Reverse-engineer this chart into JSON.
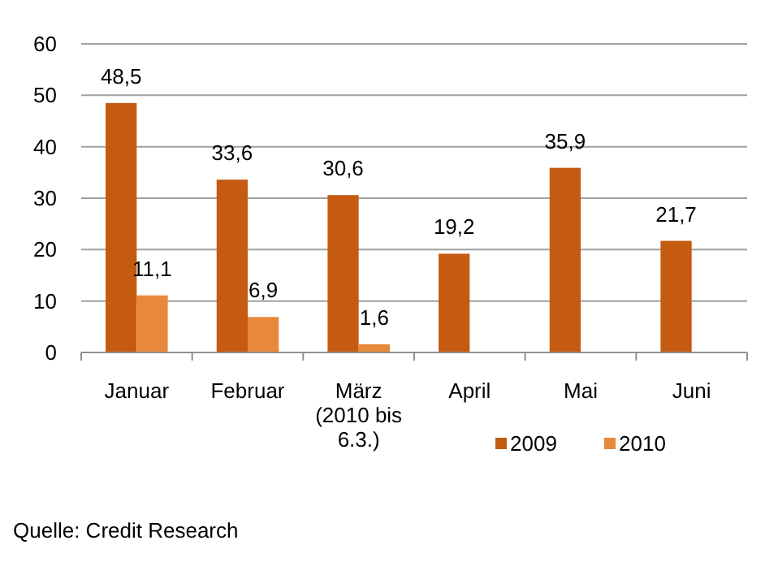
{
  "chart_data": {
    "type": "bar",
    "categories": [
      "Januar",
      "Februar",
      "März (2010 bis 6.3.)",
      "April",
      "Mai",
      "Juni"
    ],
    "series": [
      {
        "name": "2009",
        "color": "#c55a11",
        "values": [
          48.5,
          33.6,
          30.6,
          19.2,
          35.9,
          21.7
        ],
        "value_labels": [
          "48,5",
          "33,6",
          "30,6",
          "19,2",
          "35,9",
          "21,7"
        ]
      },
      {
        "name": "2010",
        "color": "#e8883a",
        "values": [
          11.1,
          6.9,
          1.6,
          null,
          null,
          null
        ],
        "value_labels": [
          "11,1",
          "6,9",
          "1,6",
          null,
          null,
          null
        ]
      }
    ],
    "ylim": [
      0,
      60
    ],
    "yticks": [
      0,
      10,
      20,
      30,
      40,
      50,
      60
    ],
    "grid": "y",
    "legend": "bottom right",
    "annotations": [
      "Quelle: Credit Research"
    ]
  }
}
